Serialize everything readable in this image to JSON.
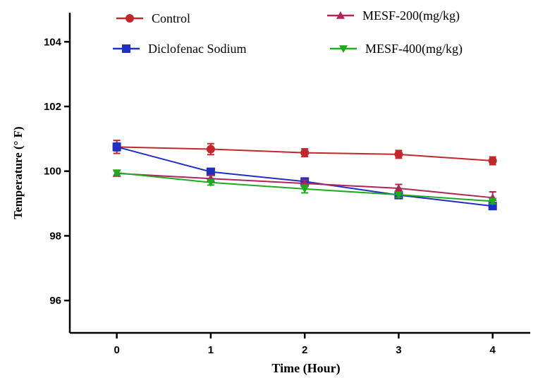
{
  "chart_data": {
    "type": "line",
    "xlabel": "Time (Hour)",
    "ylabel": "Temperature (° F)",
    "x": [
      0,
      1,
      2,
      3,
      4
    ],
    "xlim": [
      -0.5,
      4.4
    ],
    "ylim": [
      95,
      104.9
    ],
    "xticks": [
      "0",
      "1",
      "2",
      "3",
      "4"
    ],
    "yticks": [
      "96",
      "98",
      "100",
      "102",
      "104"
    ],
    "ytick_values": [
      96,
      98,
      100,
      102,
      104
    ],
    "grid": false,
    "legend": "top",
    "series": [
      {
        "name": "Control",
        "color": "#c0282d",
        "marker": "circle",
        "values": [
          100.75,
          100.68,
          100.57,
          100.52,
          100.32
        ],
        "errors": [
          0.2,
          0.17,
          0.12,
          0.12,
          0.12
        ]
      },
      {
        "name": "Diclofenac Sodium",
        "color": "#1f2fbf",
        "marker": "square",
        "values": [
          100.75,
          99.98,
          99.68,
          99.26,
          98.92
        ],
        "errors": [
          0.12,
          0.08,
          0.06,
          0.06,
          0.06
        ]
      },
      {
        "name": "MESF-200(mg/kg)",
        "color": "#b0245a",
        "marker": "triangle-up",
        "values": [
          99.93,
          99.77,
          99.62,
          99.47,
          99.18
        ],
        "errors": [
          0.08,
          0.1,
          0.1,
          0.12,
          0.18
        ]
      },
      {
        "name": "MESF-400(mg/kg)",
        "color": "#1faa1f",
        "marker": "triangle-down",
        "values": [
          99.95,
          99.65,
          99.45,
          99.27,
          99.07
        ],
        "errors": [
          0.07,
          0.08,
          0.12,
          0.08,
          0.08
        ]
      }
    ]
  }
}
